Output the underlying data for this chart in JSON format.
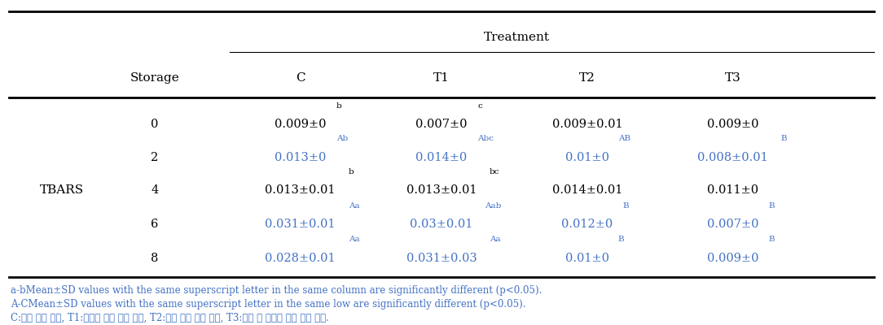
{
  "title": "Treatment",
  "storage_values": [
    "0",
    "2",
    "4",
    "6",
    "8"
  ],
  "table_data": [
    [
      "0.009±0",
      "0.007±0",
      "0.009±0.01",
      "0.009±0"
    ],
    [
      "0.013±0",
      "0.014±0",
      "0.01±0",
      "0.008±0.01"
    ],
    [
      "0.013±0.01",
      "0.013±0.01",
      "0.014±0.01",
      "0.011±0"
    ],
    [
      "0.031±0.01",
      "0.03±0.01",
      "0.012±0",
      "0.007±0"
    ],
    [
      "0.028±0.01",
      "0.031±0.03",
      "0.01±0",
      "0.009±0"
    ]
  ],
  "superscripts": [
    [
      "b",
      "c",
      "",
      ""
    ],
    [
      "Ab",
      "Abc",
      "AB",
      "B"
    ],
    [
      "b",
      "bc",
      "",
      ""
    ],
    [
      "Aa",
      "Aab",
      "B",
      "B"
    ],
    [
      "Aa",
      "Aa",
      "B",
      "B"
    ]
  ],
  "blue_rows": [
    1,
    3,
    4
  ],
  "footnote1": "a-bMean±SD values with the same superscript letter in the same column are significantly different (p<0.05).",
  "footnote2": "A-CMean±SD values with the same superscript letter in the same low are significantly different (p<0.05).",
  "footnote3": "C:일반 돈육 패티, T1:미강유 대체 돈육 패티, T2:황련 대체 돈육 패티, T3:황련 및 미강유 대체 돈육 패티.",
  "col_headers": [
    "C",
    "T1",
    "T2",
    "T3"
  ],
  "row_label": "TBARS",
  "text_color_blue": "#4472C4",
  "text_color_black": "#000000",
  "bg_color": "#FFFFFF"
}
